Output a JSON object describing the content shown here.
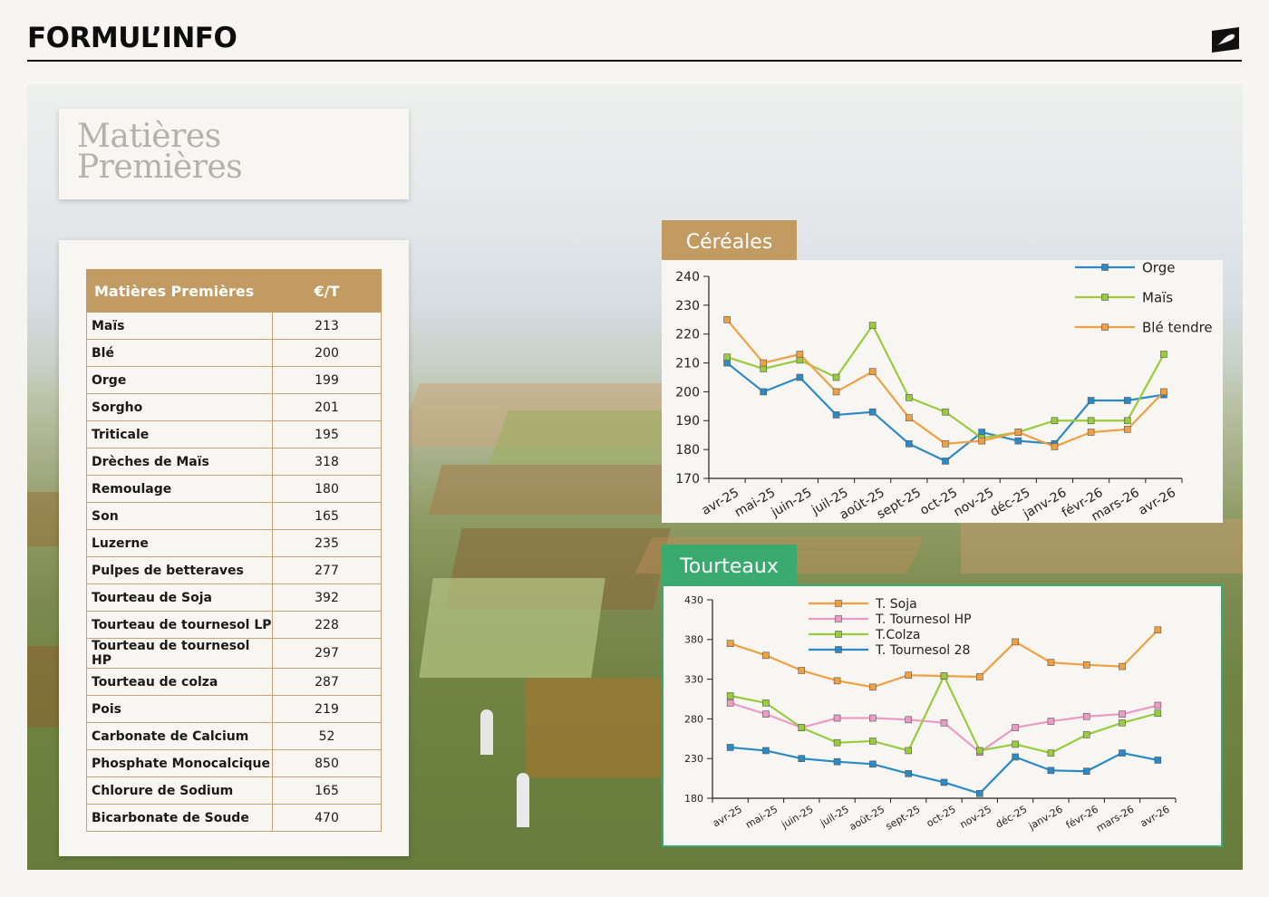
{
  "header": {
    "brand": "FORMUL’INFO"
  },
  "title_card": {
    "line1": "Matières",
    "line2": "Premières"
  },
  "table": {
    "headers": [
      "Matières Premières",
      "€/T"
    ],
    "rows": [
      [
        "Maïs",
        "213"
      ],
      [
        "Blé",
        "200"
      ],
      [
        "Orge",
        "199"
      ],
      [
        "Sorgho",
        "201"
      ],
      [
        "Triticale",
        "195"
      ],
      [
        "Drèches de Maïs",
        "318"
      ],
      [
        "Remoulage",
        "180"
      ],
      [
        "Son",
        "165"
      ],
      [
        "Luzerne",
        "235"
      ],
      [
        "Pulpes de betteraves",
        "277"
      ],
      [
        "Tourteau de Soja",
        "392"
      ],
      [
        "Tourteau de tournesol LP",
        "228"
      ],
      [
        "Tourteau de tournesol HP",
        "297"
      ],
      [
        "Tourteau de colza",
        "287"
      ],
      [
        "Pois",
        "219"
      ],
      [
        "Carbonate de Calcium",
        "52"
      ],
      [
        "Phosphate Monocalcique",
        "850"
      ],
      [
        "Chlorure de Sodium",
        "165"
      ],
      [
        "Bicarbonate de Soude",
        "470"
      ]
    ]
  },
  "colors": {
    "gold": "#c19b61",
    "green_tab": "#3aaa6e"
  },
  "chart_data": [
    {
      "type": "line",
      "title": "Céréales",
      "categories": [
        "avr-25",
        "mai-25",
        "juin-25",
        "juil-25",
        "août-25",
        "sept-25",
        "oct-25",
        "nov-25",
        "déc-25",
        "janv-26",
        "févr-26",
        "mars-26",
        "avr-26"
      ],
      "ylim": [
        170,
        240
      ],
      "yticks": [
        170,
        180,
        190,
        200,
        210,
        220,
        230,
        240
      ],
      "legend": "top-right",
      "grid": false,
      "series": [
        {
          "name": "Orge",
          "color": "#2b8ac6",
          "values": [
            210,
            200,
            205,
            192,
            193,
            182,
            176,
            186,
            183,
            182,
            197,
            197,
            199
          ]
        },
        {
          "name": "Maïs",
          "color": "#9acb3c",
          "values": [
            212,
            208,
            211,
            205,
            223,
            198,
            193,
            184,
            186,
            190,
            190,
            190,
            213
          ]
        },
        {
          "name": "Blé tendre",
          "color": "#f0a040",
          "values": [
            225,
            210,
            213,
            200,
            207,
            191,
            182,
            183,
            186,
            181,
            186,
            187,
            200
          ]
        }
      ]
    },
    {
      "type": "line",
      "title": "Tourteaux",
      "categories": [
        "avr-25",
        "mai-25",
        "juin-25",
        "juil-25",
        "août-25",
        "sept-25",
        "oct-25",
        "nov-25",
        "déc-25",
        "janv-26",
        "févr-26",
        "mars-26",
        "avr-26"
      ],
      "ylim": [
        180,
        430
      ],
      "yticks": [
        180,
        230,
        280,
        330,
        380,
        430
      ],
      "legend": "top-left",
      "grid": false,
      "series": [
        {
          "name": "T. Soja",
          "color": "#f0a040",
          "values": [
            375,
            360,
            341,
            328,
            320,
            335,
            334,
            333,
            377,
            351,
            348,
            346,
            392
          ]
        },
        {
          "name": "T. Tournesol HP",
          "color": "#ec9cc4",
          "values": [
            300,
            286,
            269,
            281,
            281,
            279,
            275,
            238,
            269,
            277,
            283,
            286,
            297
          ]
        },
        {
          "name": "T.Colza",
          "color": "#9acb3c",
          "values": [
            309,
            300,
            269,
            250,
            252,
            240,
            334,
            240,
            248,
            237,
            260,
            275,
            287
          ]
        },
        {
          "name": "T. Tournesol 28",
          "color": "#2b8ac6",
          "values": [
            244,
            240,
            230,
            226,
            223,
            211,
            200,
            186,
            232,
            215,
            214,
            237,
            228
          ]
        }
      ]
    }
  ]
}
